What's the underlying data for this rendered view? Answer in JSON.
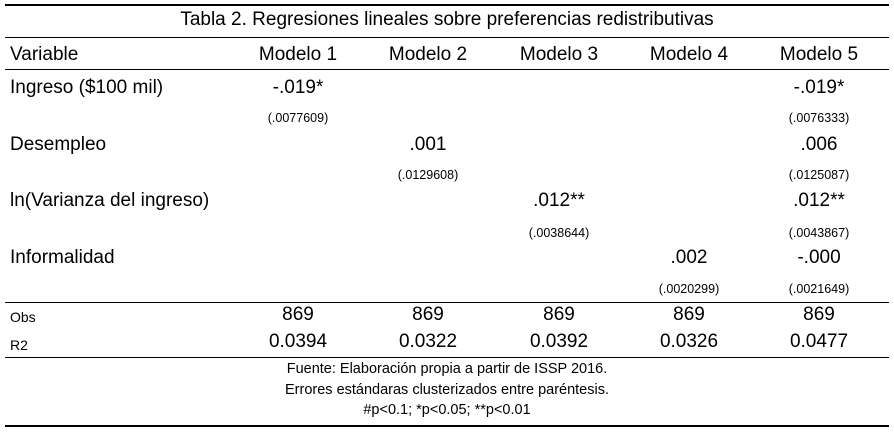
{
  "title": "Tabla 2. Regresiones lineales sobre preferencias redistributivas",
  "header": {
    "variable": "Variable",
    "models": [
      "Modelo 1",
      "Modelo 2",
      "Modelo 3",
      "Modelo 4",
      "Modelo 5"
    ]
  },
  "rows": [
    {
      "label": "Ingreso ($100 mil)",
      "coef": [
        "-.019*",
        "",
        "",
        "",
        "-.019*"
      ],
      "se": [
        "(.0077609)",
        "",
        "",
        "",
        "(.0076333)"
      ]
    },
    {
      "label": "Desempleo",
      "coef": [
        "",
        ".001",
        "",
        "",
        ".006"
      ],
      "se": [
        "",
        "(.0129608)",
        "",
        "",
        "(.0125087)"
      ]
    },
    {
      "label": "ln(Varianza del ingreso)",
      "coef": [
        "",
        "",
        ".012**",
        "",
        ".012**"
      ],
      "se": [
        "",
        "",
        "(.0038644)",
        "",
        "(.0043867)"
      ]
    },
    {
      "label": "Informalidad",
      "coef": [
        "",
        "",
        "",
        ".002",
        "-.000"
      ],
      "se": [
        "",
        "",
        "",
        "(.0020299)",
        "(.0021649)"
      ]
    }
  ],
  "stats": [
    {
      "label": "Obs",
      "values": [
        "869",
        "869",
        "869",
        "869",
        "869"
      ]
    },
    {
      "label": "R2",
      "values": [
        "0.0394",
        "0.0322",
        "0.0392",
        "0.0326",
        "0.0477"
      ]
    }
  ],
  "notes": [
    "Fuente: Elaboración propia a partir de ISSP 2016.",
    "Errores estándaras clusterizados entre paréntesis.",
    "#p<0.1; *p<0.05; **p<0.01"
  ]
}
